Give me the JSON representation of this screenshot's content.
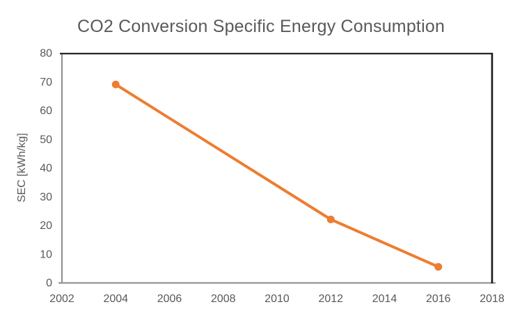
{
  "page": {
    "background": "#ffffff"
  },
  "chart_data": {
    "type": "line",
    "title": "CO2 Conversion Specific Energy Consumption",
    "xlabel": "",
    "ylabel": "SEC [kWh/kg]",
    "x": [
      2004,
      2012,
      2016
    ],
    "y": [
      69,
      22,
      5.5
    ],
    "xlim": [
      2002,
      2018
    ],
    "ylim": [
      0,
      80
    ],
    "x_ticks": [
      2002,
      2004,
      2006,
      2008,
      2010,
      2012,
      2014,
      2016,
      2018
    ],
    "y_ticks": [
      0,
      10,
      20,
      30,
      40,
      50,
      60,
      70,
      80
    ],
    "grid": false,
    "legend": "none",
    "marker": "circle",
    "line_color": "#ED7D31",
    "marker_color": "#ED7D31",
    "text_color": "#595959",
    "axis_colors": {
      "top": "#262626",
      "right": "#1a1a1a",
      "left": "#8c8c8c",
      "bottom": "#9e9e9e"
    }
  }
}
